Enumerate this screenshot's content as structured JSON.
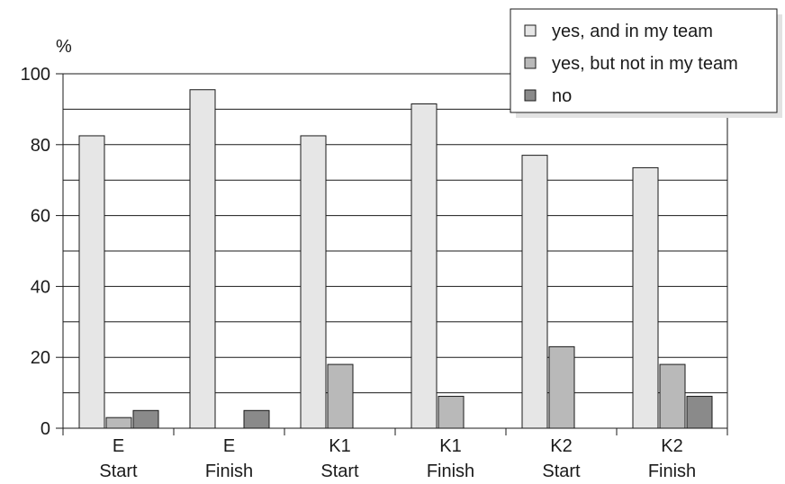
{
  "chart_data": {
    "type": "bar",
    "ylabel": "%",
    "ylim": [
      0,
      100
    ],
    "yticks": [
      "0",
      "20",
      "40",
      "60",
      "80",
      "100"
    ],
    "categories": [
      {
        "line1": "E",
        "line2": "Start"
      },
      {
        "line1": "E",
        "line2": "Finish"
      },
      {
        "line1": "K1",
        "line2": "Start"
      },
      {
        "line1": "K1",
        "line2": "Finish"
      },
      {
        "line1": "K2",
        "line2": "Start"
      },
      {
        "line1": "K2",
        "line2": "Finish"
      }
    ],
    "series": [
      {
        "name": "yes, and in my team",
        "color": "#e6e6e6",
        "values": [
          82.5,
          95.5,
          82.5,
          91.5,
          77,
          73.5
        ]
      },
      {
        "name": "yes, but not in my team",
        "color": "#b9b9b9",
        "values": [
          3,
          0,
          18,
          9,
          23,
          18
        ]
      },
      {
        "name": "no",
        "color": "#8a8a8a",
        "values": [
          5,
          5,
          0,
          0,
          0,
          9
        ]
      }
    ],
    "grid": true,
    "legend": "top-right"
  }
}
